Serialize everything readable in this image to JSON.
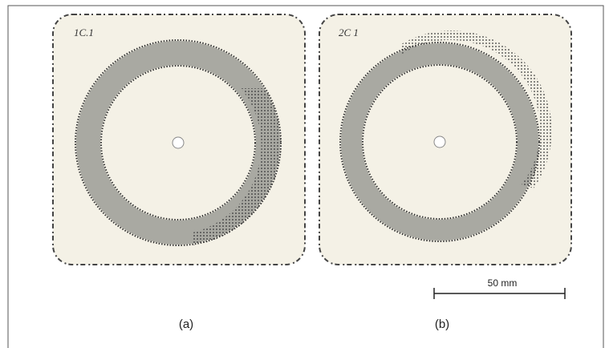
{
  "specimens": [
    {
      "tag": "1C.1",
      "caption": "(a)"
    },
    {
      "tag": "2C 1",
      "caption": "(b)"
    }
  ],
  "scale_bar": {
    "label": "50 mm"
  }
}
